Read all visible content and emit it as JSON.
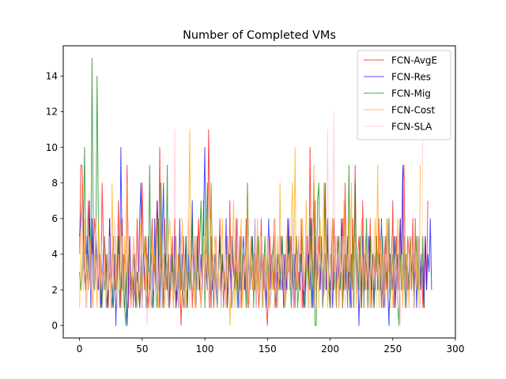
{
  "chart_data": {
    "type": "line",
    "title": "Number of Completed VMs",
    "xlabel": "",
    "ylabel": "",
    "xlim": [
      -13,
      300
    ],
    "ylim": [
      -0.7,
      15.7
    ],
    "xticks": [
      0,
      50,
      100,
      150,
      200,
      250,
      300
    ],
    "yticks": [
      0,
      2,
      4,
      6,
      8,
      10,
      12,
      14
    ],
    "grid": false,
    "legend_position": "top-right",
    "series": [
      {
        "name": "FCN-AvgE",
        "color": "#ff0000",
        "x_start": 0,
        "values": [
          4,
          9,
          9,
          6,
          3,
          2,
          4,
          7,
          3,
          2,
          5,
          4,
          6,
          5,
          3,
          2,
          4,
          1,
          8,
          5,
          3,
          2,
          4,
          1,
          6,
          2,
          3,
          5,
          2,
          4,
          2,
          7,
          3,
          1,
          6,
          2,
          4,
          3,
          9,
          1,
          5,
          2,
          3,
          1,
          4,
          2,
          6,
          3,
          1,
          2,
          8,
          4,
          2,
          5,
          3,
          1,
          2,
          4,
          6,
          2,
          3,
          5,
          7,
          2,
          10,
          4,
          1,
          2,
          6,
          3,
          2,
          4,
          1,
          3,
          5,
          2,
          6,
          1,
          2,
          4,
          3,
          0,
          2,
          5,
          1,
          3,
          2,
          6,
          2,
          4,
          1,
          3,
          5,
          2,
          4,
          6,
          2,
          1,
          3,
          5,
          2,
          4,
          2,
          11,
          6,
          1,
          4,
          3,
          2,
          5,
          2,
          3,
          6,
          2,
          4,
          1,
          3,
          2,
          5,
          2,
          7,
          1,
          4,
          3,
          2,
          6,
          2,
          3,
          5,
          1,
          3,
          4,
          2,
          6,
          2,
          1,
          3,
          5,
          2,
          4,
          2,
          3,
          5,
          1,
          2,
          6,
          3,
          4,
          2,
          1,
          0,
          3,
          5,
          2,
          4,
          2,
          6,
          1,
          3,
          2,
          5,
          3,
          2,
          4,
          1,
          2,
          6,
          3,
          5,
          2,
          3,
          4,
          1,
          5,
          2,
          3,
          2,
          6,
          1,
          3,
          2,
          4,
          5,
          2,
          10,
          3,
          6,
          1,
          7,
          2,
          3,
          5,
          2,
          4,
          1,
          3,
          8,
          2,
          5,
          3,
          1,
          4,
          2,
          6,
          3,
          2,
          5,
          1,
          3,
          4,
          6,
          2,
          8,
          3,
          4,
          2,
          5,
          1,
          6,
          3,
          9,
          2,
          4,
          5,
          3,
          1,
          7,
          2,
          4,
          3,
          5,
          2,
          6,
          1,
          3,
          4,
          2,
          5,
          3,
          6,
          2,
          4,
          1,
          3,
          5,
          2,
          6,
          3,
          4,
          2,
          7,
          1,
          3,
          5,
          2,
          4,
          6,
          2,
          8,
          9,
          3,
          2,
          5,
          4,
          3,
          2,
          6,
          1,
          4,
          2,
          3,
          5,
          2,
          4,
          1,
          3,
          5,
          2,
          7
        ]
      },
      {
        "name": "FCN-Res",
        "color": "#0000ff",
        "x_start": 0,
        "values": [
          5,
          6,
          7,
          4,
          3,
          2,
          5,
          3,
          7,
          1,
          6,
          2,
          3,
          5,
          4,
          2,
          3,
          1,
          2,
          4,
          5,
          3,
          1,
          2,
          6,
          3,
          2,
          1,
          4,
          0,
          3,
          5,
          2,
          10,
          4,
          2,
          1,
          3,
          0,
          2,
          5,
          1,
          3,
          4,
          2,
          1,
          3,
          2,
          6,
          8,
          1,
          4,
          3,
          2,
          1,
          5,
          2,
          4,
          3,
          1,
          6,
          2,
          7,
          4,
          1,
          3,
          5,
          8,
          2,
          4,
          3,
          1,
          2,
          4,
          3,
          2,
          5,
          1,
          3,
          2,
          6,
          2,
          4,
          2,
          3,
          5,
          1,
          4,
          2,
          3,
          7,
          2,
          4,
          1,
          5,
          3,
          2,
          4,
          2,
          6,
          10,
          3,
          2,
          4,
          1,
          5,
          2,
          3,
          4,
          2,
          1,
          3,
          5,
          2,
          4,
          3,
          2,
          6,
          1,
          3,
          4,
          2,
          5,
          3,
          2,
          4,
          6,
          1,
          3,
          2,
          4,
          5,
          2,
          3,
          1,
          4,
          2,
          3,
          5,
          2,
          6,
          1,
          3,
          4,
          2,
          5,
          3,
          2,
          4,
          1,
          3,
          6,
          2,
          4,
          3,
          5,
          1,
          2,
          4,
          3,
          2,
          5,
          3,
          1,
          4,
          2,
          3,
          6,
          2,
          5,
          3,
          1,
          4,
          2,
          3,
          5,
          2,
          4,
          3,
          1,
          2,
          5,
          3,
          4,
          2,
          6,
          1,
          3,
          5,
          2,
          4,
          3,
          2,
          5,
          1,
          3,
          4,
          2,
          6,
          3,
          2,
          4,
          1,
          3,
          5,
          2,
          4,
          3,
          2,
          6,
          1,
          3,
          4,
          2,
          5,
          3,
          1,
          4,
          2,
          3,
          5,
          2,
          4,
          0,
          3,
          2,
          5,
          1,
          4,
          3,
          2,
          5,
          3,
          2,
          4,
          1,
          3,
          5,
          2,
          4,
          3,
          6,
          2,
          1,
          3,
          5,
          2,
          0,
          4,
          3,
          2,
          5,
          1,
          3,
          4,
          2,
          6,
          3,
          9,
          2,
          4,
          1,
          3,
          2,
          5,
          3,
          4,
          2,
          6,
          1,
          3,
          5,
          2,
          4,
          3,
          1,
          5,
          2,
          4,
          3,
          6,
          2
        ]
      },
      {
        "name": "FCN-Mig",
        "color": "#008000",
        "x_start": 0,
        "values": [
          3,
          2,
          3,
          5,
          10,
          4,
          3,
          2,
          6,
          3,
          15,
          5,
          2,
          4,
          14,
          6,
          3,
          2,
          1,
          3,
          2,
          4,
          1,
          2,
          3,
          2,
          1,
          3,
          4,
          2,
          3,
          5,
          1,
          3,
          2,
          4,
          1,
          0,
          3,
          4,
          2,
          1,
          3,
          2,
          4,
          1,
          3,
          2,
          1,
          4,
          2,
          3,
          5,
          1,
          4,
          3,
          9,
          2,
          1,
          3,
          4,
          2,
          1,
          6,
          2,
          8,
          3,
          1,
          4,
          2,
          9,
          1,
          3,
          2,
          4,
          1,
          3,
          5,
          2,
          1,
          4,
          2,
          3,
          1,
          2,
          5,
          1,
          3,
          2,
          4,
          6,
          2,
          3,
          1,
          4,
          2,
          5,
          7,
          3,
          7,
          1,
          4,
          8,
          3,
          2,
          8,
          4,
          1,
          3,
          4,
          2,
          3,
          5,
          1,
          4,
          2,
          3,
          1,
          2,
          4,
          3,
          5,
          1,
          2,
          3,
          4,
          1,
          3,
          2,
          5,
          4,
          2,
          3,
          1,
          8,
          4,
          2,
          3,
          5,
          1,
          4,
          2,
          3,
          5,
          2,
          4,
          1,
          3,
          5,
          2,
          4,
          3,
          1,
          2,
          4,
          5,
          3,
          2,
          1,
          4,
          3,
          2,
          5,
          1,
          3,
          4,
          2,
          5,
          3,
          1,
          4,
          2,
          3,
          5,
          1,
          2,
          4,
          3,
          5,
          2,
          1,
          3,
          4,
          2,
          6,
          1,
          3,
          8,
          0,
          0,
          7,
          8,
          3,
          4,
          1,
          2,
          8,
          3,
          5,
          2,
          1,
          4,
          6,
          2,
          3,
          1,
          4,
          5,
          2,
          3,
          1,
          6,
          2,
          4,
          1,
          9,
          3,
          2,
          5,
          1,
          8,
          3,
          4,
          2,
          5,
          1,
          3,
          4,
          2,
          6,
          1,
          3,
          5,
          2,
          4,
          1,
          3,
          5,
          2,
          4,
          3,
          1,
          5,
          2,
          4,
          3,
          2,
          6,
          1,
          3,
          4,
          2,
          5,
          3,
          1,
          0,
          4,
          2,
          3,
          5,
          1,
          4,
          2,
          3,
          5,
          2,
          4,
          1,
          3,
          5,
          2,
          4,
          3,
          2,
          5,
          1
        ]
      },
      {
        "name": "FCN-Cost",
        "color": "#ffa500",
        "x_start": 0,
        "values": [
          1,
          4,
          8,
          2,
          6,
          1,
          4,
          2,
          3,
          5,
          1,
          2,
          4,
          3,
          1,
          6,
          2,
          4,
          3,
          2,
          5,
          1,
          3,
          2,
          4,
          1,
          8,
          3,
          2,
          5,
          1,
          4,
          2,
          6,
          3,
          1,
          5,
          2,
          8,
          4,
          3,
          1,
          2,
          5,
          4,
          3,
          1,
          2,
          4,
          6,
          2,
          3,
          5,
          1,
          4,
          2,
          3,
          1,
          5,
          2,
          4,
          3,
          6,
          1,
          2,
          5,
          3,
          4,
          1,
          2,
          3,
          5,
          6,
          4,
          2,
          1,
          3,
          5,
          2,
          4,
          1,
          3,
          6,
          2,
          4,
          1,
          3,
          5,
          11,
          2,
          4,
          3,
          1,
          5,
          2,
          3,
          4,
          1,
          2,
          5,
          3,
          6,
          2,
          4,
          1,
          8,
          3,
          2,
          5,
          4,
          1,
          3,
          2,
          4,
          6,
          2,
          3,
          1,
          5,
          3,
          0,
          2,
          4,
          7,
          1,
          3,
          5,
          2,
          4,
          6,
          1,
          3,
          4,
          2,
          7,
          1,
          3,
          5,
          2,
          4,
          3,
          1,
          6,
          2,
          3,
          5,
          1,
          4,
          3,
          2,
          5,
          1,
          3,
          4,
          2,
          6,
          1,
          3,
          5,
          2,
          8,
          3,
          4,
          2,
          1,
          5,
          3,
          4,
          2,
          6,
          8,
          3,
          10,
          2,
          4,
          5,
          3,
          1,
          6,
          2,
          4,
          7,
          3,
          1,
          5,
          2,
          4,
          9,
          3,
          2,
          5,
          1,
          6,
          3,
          4,
          8,
          2,
          5,
          1,
          3,
          4,
          2,
          6,
          3,
          5,
          1,
          4,
          2,
          3,
          5,
          1,
          7,
          3,
          4,
          2,
          6,
          3,
          8,
          2,
          4,
          5,
          1,
          3,
          4,
          2,
          6,
          3,
          1,
          5,
          2,
          4,
          3,
          1,
          5,
          2,
          4,
          6,
          3,
          9,
          1,
          5,
          2,
          4,
          3,
          1,
          6,
          2,
          4,
          3,
          5,
          1,
          2,
          4,
          3,
          6,
          2,
          3,
          4,
          1,
          5,
          2,
          4,
          3,
          1,
          5,
          2,
          4,
          3,
          6,
          2,
          5,
          1,
          9
        ]
      },
      {
        "name": "FCN-SLA",
        "color": "#ffc0cb",
        "x_start": 0,
        "values": [
          4,
          5,
          7,
          2,
          3,
          4,
          1,
          3,
          5,
          2,
          4,
          1,
          3,
          6,
          2,
          4,
          1,
          5,
          3,
          2,
          4,
          1,
          3,
          2,
          5,
          1,
          4,
          2,
          6,
          3,
          1,
          4,
          2,
          3,
          5,
          1,
          2,
          4,
          3,
          6,
          2,
          1,
          3,
          5,
          2,
          4,
          1,
          3,
          2,
          5,
          1,
          3,
          4,
          2,
          0,
          3,
          5,
          1,
          4,
          2,
          3,
          1,
          5,
          2,
          4,
          3,
          1,
          6,
          2,
          3,
          5,
          1,
          4,
          2,
          3,
          1,
          11,
          2,
          4,
          1,
          3,
          5,
          2,
          4,
          1,
          3,
          2,
          6,
          1,
          3,
          4,
          2,
          5,
          1,
          3,
          2,
          4,
          1,
          3,
          5,
          2,
          4,
          3,
          1,
          6,
          2,
          3,
          4,
          1,
          5,
          2,
          3,
          4,
          1,
          3,
          2,
          5,
          1,
          4,
          2,
          3,
          5,
          1,
          2,
          4,
          3,
          6,
          2,
          1,
          3,
          5,
          2,
          4,
          3,
          1,
          5,
          2,
          4,
          3,
          2,
          6,
          1,
          3,
          4,
          2,
          5,
          3,
          1,
          4,
          2,
          3,
          5,
          1,
          2,
          4,
          3,
          6,
          2,
          1,
          3,
          5,
          2,
          4,
          3,
          1,
          5,
          2,
          4,
          3,
          2,
          6,
          1,
          3,
          4,
          2,
          5,
          3,
          1,
          4,
          2,
          3,
          5,
          1,
          2,
          4,
          3,
          6,
          2,
          1,
          3,
          5,
          2,
          4,
          3,
          1,
          5,
          2,
          4,
          11,
          2,
          6,
          1,
          3,
          12,
          2,
          5,
          3,
          1,
          4,
          2,
          3,
          5,
          1,
          2,
          4,
          3,
          6,
          2,
          1,
          3,
          5,
          2,
          4,
          3,
          1,
          5,
          2,
          4,
          3,
          2,
          6,
          1,
          3,
          4,
          2,
          5,
          3,
          1,
          4,
          2,
          3,
          5,
          1,
          2,
          4,
          3,
          6,
          2,
          1,
          3,
          5,
          2,
          4,
          3,
          1,
          5,
          0,
          4,
          3,
          2,
          6,
          1,
          3,
          4,
          2,
          5,
          3,
          1,
          4,
          2,
          3,
          5,
          1,
          2,
          11
        ]
      }
    ]
  }
}
